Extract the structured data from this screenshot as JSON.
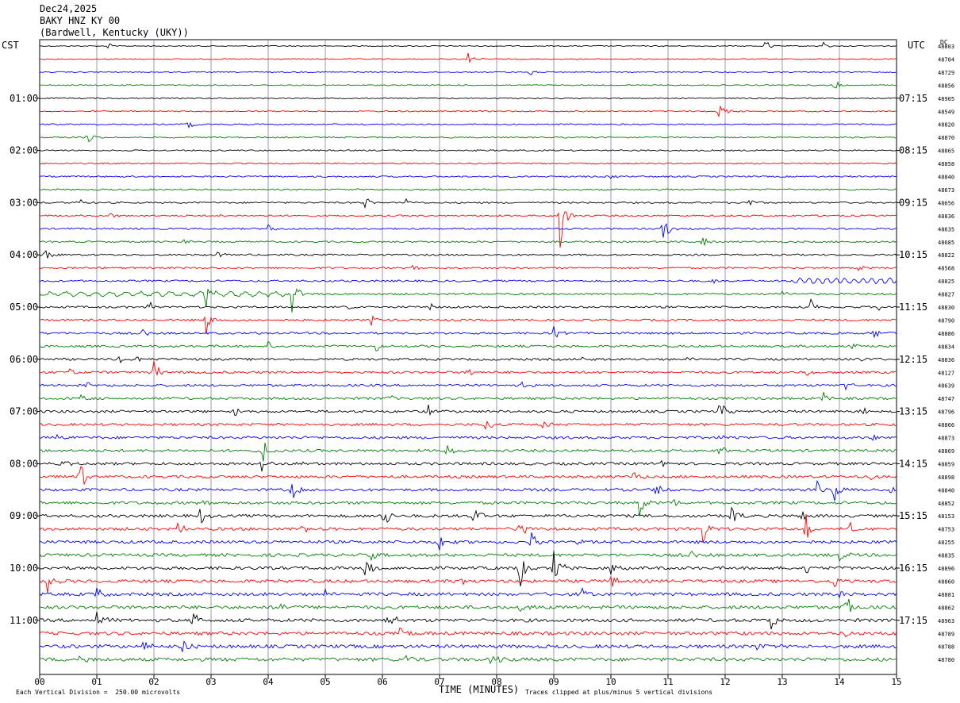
{
  "header": {
    "date": "Dec24,2025",
    "station": "BAKY HNZ KY 00",
    "location": "(Bardwell, Kentucky (UKY))"
  },
  "left_timezone": "CST",
  "right_timezone": "UTC",
  "dc_label": "DC",
  "footer": {
    "scale_note": "Each Vertical Division =  250.00 microvolts",
    "clip_note": "Traces clipped at plus/minus 5 vertical divisions"
  },
  "chart_data": {
    "type": "line",
    "title": "",
    "xlabel": "TIME (MINUTES)",
    "xlim": [
      0,
      15
    ],
    "x_ticks": [
      "00",
      "01",
      "02",
      "03",
      "04",
      "05",
      "06",
      "07",
      "08",
      "09",
      "10",
      "11",
      "12",
      "13",
      "14",
      "15"
    ],
    "trace_count": 48,
    "trace_colors": [
      "#000000",
      "#ff0000",
      "#0000ff",
      "#008000"
    ],
    "left_hour_labels": [
      {
        "trace": 4,
        "label": "01:00"
      },
      {
        "trace": 8,
        "label": "02:00"
      },
      {
        "trace": 12,
        "label": "03:00"
      },
      {
        "trace": 16,
        "label": "04:00"
      },
      {
        "trace": 20,
        "label": "05:00"
      },
      {
        "trace": 24,
        "label": "06:00"
      },
      {
        "trace": 28,
        "label": "07:00"
      },
      {
        "trace": 32,
        "label": "08:00"
      },
      {
        "trace": 36,
        "label": "09:00"
      },
      {
        "trace": 40,
        "label": "10:00"
      },
      {
        "trace": 44,
        "label": "11:00"
      }
    ],
    "right_hour_labels": [
      {
        "trace": 4,
        "label": "07:15"
      },
      {
        "trace": 8,
        "label": "08:15"
      },
      {
        "trace": 12,
        "label": "09:15"
      },
      {
        "trace": 16,
        "label": "10:15"
      },
      {
        "trace": 20,
        "label": "11:15"
      },
      {
        "trace": 24,
        "label": "12:15"
      },
      {
        "trace": 28,
        "label": "13:15"
      },
      {
        "trace": 32,
        "label": "14:15"
      },
      {
        "trace": 36,
        "label": "15:15"
      },
      {
        "trace": 40,
        "label": "16:15"
      },
      {
        "trace": 44,
        "label": "17:15"
      }
    ],
    "dc_offsets": [
      "48803",
      "48704",
      "48729",
      "48856",
      "48905",
      "48549",
      "48820",
      "48870",
      "48865",
      "48858",
      "48840",
      "48673",
      "48656",
      "48836",
      "48635",
      "48685",
      "48822",
      "48568",
      "48825",
      "48827",
      "48830",
      "48790",
      "48886",
      "48834",
      "48836",
      "48127",
      "48639",
      "48747",
      "48796",
      "48866",
      "48873",
      "48869",
      "48859",
      "48898",
      "48840",
      "48852",
      "48153",
      "48753",
      "48255",
      "48835",
      "48896",
      "48860",
      "48881",
      "48862",
      "48963",
      "48789",
      "48788",
      "48780"
    ],
    "events": [
      {
        "trace": 0,
        "t": 1.2,
        "amp": 0.3
      },
      {
        "trace": 0,
        "t": 12.7,
        "amp": 0.5
      },
      {
        "trace": 0,
        "t": 13.7,
        "amp": 0.4
      },
      {
        "trace": 1,
        "t": 7.5,
        "amp": 0.5
      },
      {
        "trace": 2,
        "t": 8.6,
        "amp": 0.5
      },
      {
        "trace": 3,
        "t": 13.9,
        "amp": 0.5
      },
      {
        "trace": 5,
        "t": 11.9,
        "amp": 1.0
      },
      {
        "trace": 6,
        "t": 2.6,
        "amp": 0.4
      },
      {
        "trace": 7,
        "t": 0.8,
        "amp": 0.7
      },
      {
        "trace": 10,
        "t": 10.0,
        "amp": 0.2
      },
      {
        "trace": 12,
        "t": 0.7,
        "amp": 0.3
      },
      {
        "trace": 12,
        "t": 5.7,
        "amp": 0.5
      },
      {
        "trace": 12,
        "t": 6.4,
        "amp": 0.3
      },
      {
        "trace": 12,
        "t": 12.4,
        "amp": 0.5
      },
      {
        "trace": 13,
        "t": 1.2,
        "amp": 0.4
      },
      {
        "trace": 13,
        "t": 3.1,
        "amp": 0.2
      },
      {
        "trace": 13,
        "t": 9.1,
        "amp": 3.0
      },
      {
        "trace": 14,
        "t": 4.0,
        "amp": 0.4
      },
      {
        "trace": 14,
        "t": 10.9,
        "amp": 1.2
      },
      {
        "trace": 15,
        "t": 2.5,
        "amp": 0.5
      },
      {
        "trace": 15,
        "t": 11.6,
        "amp": 0.5
      },
      {
        "trace": 16,
        "t": 0.1,
        "amp": 0.5
      },
      {
        "trace": 16,
        "t": 3.1,
        "amp": 0.4
      },
      {
        "trace": 17,
        "t": 0.9,
        "amp": 0.3
      },
      {
        "trace": 17,
        "t": 6.5,
        "amp": 0.4
      },
      {
        "trace": 17,
        "t": 14.3,
        "amp": 0.5
      },
      {
        "trace": 18,
        "t": 11.8,
        "amp": 0.3
      },
      {
        "trace": 19,
        "t": 2.9,
        "amp": 1.0
      },
      {
        "trace": 19,
        "t": 4.4,
        "amp": 1.8
      },
      {
        "trace": 19,
        "t": 13.0,
        "amp": 0.3
      },
      {
        "trace": 20,
        "t": 1.9,
        "amp": 0.5
      },
      {
        "trace": 20,
        "t": 5.4,
        "amp": 0.4
      },
      {
        "trace": 20,
        "t": 6.8,
        "amp": 0.4
      },
      {
        "trace": 20,
        "t": 13.5,
        "amp": 0.6
      },
      {
        "trace": 20,
        "t": 14.7,
        "amp": 0.5
      },
      {
        "trace": 21,
        "t": 2.9,
        "amp": 1.6
      },
      {
        "trace": 21,
        "t": 5.8,
        "amp": 0.4
      },
      {
        "trace": 21,
        "t": 8.4,
        "amp": 0.3
      },
      {
        "trace": 22,
        "t": 1.8,
        "amp": 0.4
      },
      {
        "trace": 22,
        "t": 3.8,
        "amp": 0.3
      },
      {
        "trace": 22,
        "t": 9.0,
        "amp": 0.6
      },
      {
        "trace": 22,
        "t": 14.6,
        "amp": 0.5
      },
      {
        "trace": 23,
        "t": 4.0,
        "amp": 0.4
      },
      {
        "trace": 23,
        "t": 5.9,
        "amp": 0.6
      },
      {
        "trace": 23,
        "t": 14.2,
        "amp": 0.4
      },
      {
        "trace": 24,
        "t": 1.4,
        "amp": 0.4
      },
      {
        "trace": 24,
        "t": 1.7,
        "amp": 0.5
      },
      {
        "trace": 24,
        "t": 9.5,
        "amp": 0.3
      },
      {
        "trace": 24,
        "t": 11.3,
        "amp": 0.4
      },
      {
        "trace": 24,
        "t": 14.3,
        "amp": 0.5
      },
      {
        "trace": 25,
        "t": 0.5,
        "amp": 0.4
      },
      {
        "trace": 25,
        "t": 2.0,
        "amp": 0.9
      },
      {
        "trace": 25,
        "t": 7.5,
        "amp": 0.5
      },
      {
        "trace": 25,
        "t": 13.4,
        "amp": 0.4
      },
      {
        "trace": 26,
        "t": 0.8,
        "amp": 0.4
      },
      {
        "trace": 26,
        "t": 8.4,
        "amp": 0.4
      },
      {
        "trace": 26,
        "t": 14.1,
        "amp": 0.4
      },
      {
        "trace": 27,
        "t": 0.7,
        "amp": 0.4
      },
      {
        "trace": 27,
        "t": 6.1,
        "amp": 0.4
      },
      {
        "trace": 27,
        "t": 13.7,
        "amp": 0.7
      },
      {
        "trace": 28,
        "t": 3.4,
        "amp": 0.5
      },
      {
        "trace": 28,
        "t": 6.8,
        "amp": 0.5
      },
      {
        "trace": 28,
        "t": 11.9,
        "amp": 0.9
      },
      {
        "trace": 28,
        "t": 14.4,
        "amp": 0.4
      },
      {
        "trace": 29,
        "t": 7.8,
        "amp": 1.0
      },
      {
        "trace": 29,
        "t": 8.8,
        "amp": 0.5
      },
      {
        "trace": 30,
        "t": 0.3,
        "amp": 0.4
      },
      {
        "trace": 30,
        "t": 11.9,
        "amp": 0.5
      },
      {
        "trace": 30,
        "t": 14.6,
        "amp": 0.4
      },
      {
        "trace": 31,
        "t": 3.9,
        "amp": 1.2
      },
      {
        "trace": 31,
        "t": 7.1,
        "amp": 0.8
      },
      {
        "trace": 31,
        "t": 11.9,
        "amp": 0.5
      },
      {
        "trace": 32,
        "t": 0.4,
        "amp": 0.4
      },
      {
        "trace": 32,
        "t": 3.9,
        "amp": 1.2
      },
      {
        "trace": 32,
        "t": 4.6,
        "amp": 0.5
      },
      {
        "trace": 32,
        "t": 10.9,
        "amp": 0.4
      },
      {
        "trace": 33,
        "t": 0.7,
        "amp": 1.4
      },
      {
        "trace": 33,
        "t": 10.4,
        "amp": 0.6
      },
      {
        "trace": 33,
        "t": 14.5,
        "amp": 0.6
      },
      {
        "trace": 34,
        "t": 4.4,
        "amp": 1.1
      },
      {
        "trace": 34,
        "t": 10.8,
        "amp": 1.0
      },
      {
        "trace": 34,
        "t": 13.6,
        "amp": 0.9
      },
      {
        "trace": 34,
        "t": 13.9,
        "amp": 1.4
      },
      {
        "trace": 34,
        "t": 14.9,
        "amp": 0.6
      },
      {
        "trace": 35,
        "t": 2.8,
        "amp": 0.6
      },
      {
        "trace": 35,
        "t": 10.5,
        "amp": 1.4
      },
      {
        "trace": 35,
        "t": 11.1,
        "amp": 0.5
      },
      {
        "trace": 36,
        "t": 2.8,
        "amp": 0.8
      },
      {
        "trace": 36,
        "t": 6.0,
        "amp": 1.5
      },
      {
        "trace": 36,
        "t": 7.6,
        "amp": 1.0
      },
      {
        "trace": 36,
        "t": 12.1,
        "amp": 1.4
      },
      {
        "trace": 36,
        "t": 13.3,
        "amp": 0.9
      },
      {
        "trace": 37,
        "t": 2.4,
        "amp": 0.6
      },
      {
        "trace": 37,
        "t": 4.6,
        "amp": 0.6
      },
      {
        "trace": 37,
        "t": 8.4,
        "amp": 0.9
      },
      {
        "trace": 37,
        "t": 11.6,
        "amp": 1.4
      },
      {
        "trace": 37,
        "t": 13.4,
        "amp": 1.4
      },
      {
        "trace": 37,
        "t": 14.2,
        "amp": 0.7
      },
      {
        "trace": 38,
        "t": 7.0,
        "amp": 0.8
      },
      {
        "trace": 38,
        "t": 8.6,
        "amp": 0.9
      },
      {
        "trace": 38,
        "t": 9.4,
        "amp": 0.5
      },
      {
        "trace": 39,
        "t": 5.8,
        "amp": 0.4
      },
      {
        "trace": 39,
        "t": 11.4,
        "amp": 0.4
      },
      {
        "trace": 39,
        "t": 14.0,
        "amp": 0.6
      },
      {
        "trace": 40,
        "t": 5.7,
        "amp": 1.5
      },
      {
        "trace": 40,
        "t": 8.4,
        "amp": 1.6
      },
      {
        "trace": 40,
        "t": 9.0,
        "amp": 1.8
      },
      {
        "trace": 40,
        "t": 10.0,
        "amp": 0.6
      },
      {
        "trace": 40,
        "t": 13.4,
        "amp": 0.5
      },
      {
        "trace": 41,
        "t": 0.1,
        "amp": 1.5
      },
      {
        "trace": 41,
        "t": 7.3,
        "amp": 0.8
      },
      {
        "trace": 41,
        "t": 10.0,
        "amp": 0.6
      },
      {
        "trace": 41,
        "t": 13.9,
        "amp": 0.6
      },
      {
        "trace": 42,
        "t": 1.0,
        "amp": 0.6
      },
      {
        "trace": 42,
        "t": 5.0,
        "amp": 0.5
      },
      {
        "trace": 42,
        "t": 9.5,
        "amp": 0.5
      },
      {
        "trace": 42,
        "t": 14.0,
        "amp": 1.0
      },
      {
        "trace": 43,
        "t": 4.2,
        "amp": 0.5
      },
      {
        "trace": 43,
        "t": 8.4,
        "amp": 0.6
      },
      {
        "trace": 43,
        "t": 14.1,
        "amp": 1.6
      },
      {
        "trace": 44,
        "t": 1.0,
        "amp": 1.0
      },
      {
        "trace": 44,
        "t": 2.7,
        "amp": 1.0
      },
      {
        "trace": 44,
        "t": 6.1,
        "amp": 1.0
      },
      {
        "trace": 44,
        "t": 12.8,
        "amp": 0.7
      },
      {
        "trace": 45,
        "t": 6.3,
        "amp": 0.6
      },
      {
        "trace": 45,
        "t": 12.1,
        "amp": 0.5
      },
      {
        "trace": 45,
        "t": 14.1,
        "amp": 0.6
      },
      {
        "trace": 46,
        "t": 1.8,
        "amp": 0.6
      },
      {
        "trace": 46,
        "t": 2.5,
        "amp": 0.7
      },
      {
        "trace": 46,
        "t": 12.5,
        "amp": 0.5
      },
      {
        "trace": 47,
        "t": 0.7,
        "amp": 0.6
      },
      {
        "trace": 47,
        "t": 6.4,
        "amp": 0.5
      },
      {
        "trace": 47,
        "t": 7.9,
        "amp": 0.6
      }
    ]
  }
}
